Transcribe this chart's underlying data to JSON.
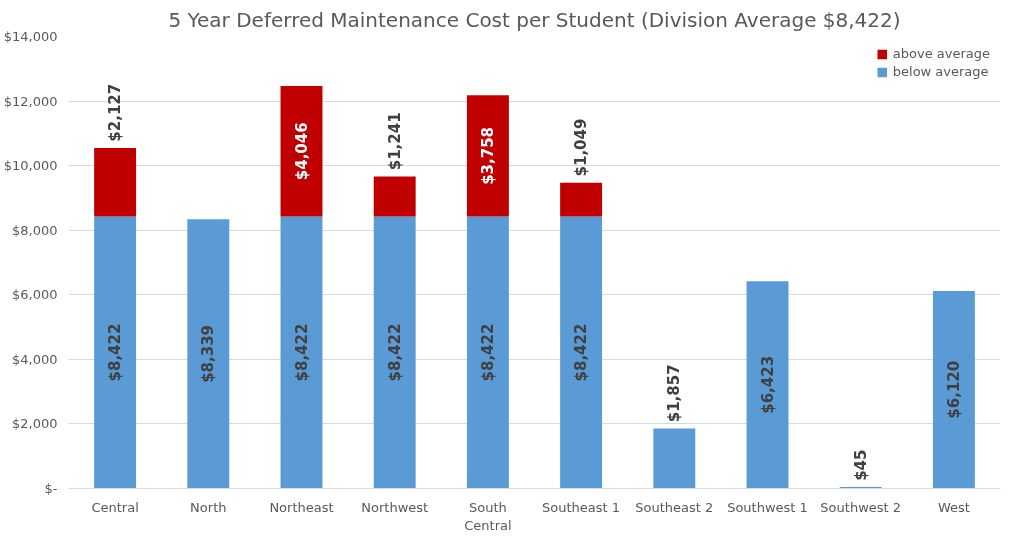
{
  "chart_data": {
    "type": "bar",
    "title": "5 Year Deferred Maintenance Cost per Student (Division Average $8,422)",
    "categories": [
      "Central",
      "North",
      "Northeast",
      "Northwest",
      "South Central",
      "Southeast 1",
      "Southeast 2",
      "Southwest 1",
      "Southwest 2",
      "West"
    ],
    "stacked": true,
    "series": [
      {
        "name": "below average",
        "color": "#5b9bd5",
        "values": [
          8422,
          8339,
          8422,
          8422,
          8422,
          8422,
          1857,
          6423,
          45,
          6120
        ],
        "value_labels": [
          "$8,422",
          "$8,339",
          "$8,422",
          "$8,422",
          "$8,422",
          "$8,422",
          "$1,857",
          "$6,423",
          "$45",
          "$6,120"
        ]
      },
      {
        "name": "above average",
        "color": "#c00000",
        "values": [
          2127,
          null,
          4046,
          1241,
          3758,
          1049,
          null,
          null,
          null,
          null
        ],
        "value_labels": [
          "$2,127",
          null,
          "$4,046",
          "$1,241",
          "$3,758",
          "$1,049",
          null,
          null,
          null,
          null
        ]
      }
    ],
    "ylim": [
      0,
      14000
    ],
    "yticks": [
      {
        "value": 0,
        "label": "$-"
      },
      {
        "value": 2000,
        "label": "$2,000"
      },
      {
        "value": 4000,
        "label": "$4,000"
      },
      {
        "value": 6000,
        "label": "$6,000"
      },
      {
        "value": 8000,
        "label": "$8,000"
      },
      {
        "value": 10000,
        "label": "$10,000"
      },
      {
        "value": 12000,
        "label": "$12,000"
      },
      {
        "value": 14000,
        "label": "$14,000"
      }
    ],
    "grid": "y",
    "legend": "top right"
  }
}
